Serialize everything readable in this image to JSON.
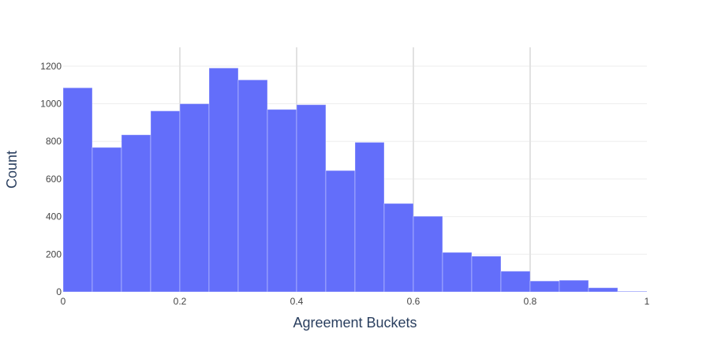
{
  "chart_data": {
    "type": "bar",
    "title": "",
    "xlabel": "Agreement Buckets",
    "ylabel": "Count",
    "bin_width": 0.05,
    "xlim": [
      0,
      1
    ],
    "ylim": [
      0,
      1300
    ],
    "x_ticks": [
      0,
      0.2,
      0.4,
      0.6,
      0.8,
      1
    ],
    "x_tick_labels": [
      "0",
      "0.2",
      "0.4",
      "0.6",
      "0.8",
      "1"
    ],
    "y_ticks": [
      0,
      200,
      400,
      600,
      800,
      1000,
      1200
    ],
    "y_tick_labels": [
      "0",
      "200",
      "400",
      "600",
      "800",
      "1000",
      "1200"
    ],
    "grid": true,
    "bar_color": "#636efa",
    "bins": [
      {
        "start": 0.0,
        "end": 0.05,
        "count": 1085
      },
      {
        "start": 0.05,
        "end": 0.1,
        "count": 768
      },
      {
        "start": 0.1,
        "end": 0.15,
        "count": 835
      },
      {
        "start": 0.15,
        "end": 0.2,
        "count": 962
      },
      {
        "start": 0.2,
        "end": 0.25,
        "count": 1000
      },
      {
        "start": 0.25,
        "end": 0.3,
        "count": 1190
      },
      {
        "start": 0.3,
        "end": 0.35,
        "count": 1127
      },
      {
        "start": 0.35,
        "end": 0.4,
        "count": 970
      },
      {
        "start": 0.4,
        "end": 0.45,
        "count": 995
      },
      {
        "start": 0.45,
        "end": 0.5,
        "count": 645
      },
      {
        "start": 0.5,
        "end": 0.55,
        "count": 795
      },
      {
        "start": 0.55,
        "end": 0.6,
        "count": 470
      },
      {
        "start": 0.6,
        "end": 0.65,
        "count": 402
      },
      {
        "start": 0.65,
        "end": 0.7,
        "count": 210
      },
      {
        "start": 0.7,
        "end": 0.75,
        "count": 190
      },
      {
        "start": 0.75,
        "end": 0.8,
        "count": 110
      },
      {
        "start": 0.8,
        "end": 0.85,
        "count": 58
      },
      {
        "start": 0.85,
        "end": 0.9,
        "count": 62
      },
      {
        "start": 0.9,
        "end": 0.95,
        "count": 22
      },
      {
        "start": 0.95,
        "end": 1.0,
        "count": 3
      }
    ]
  }
}
